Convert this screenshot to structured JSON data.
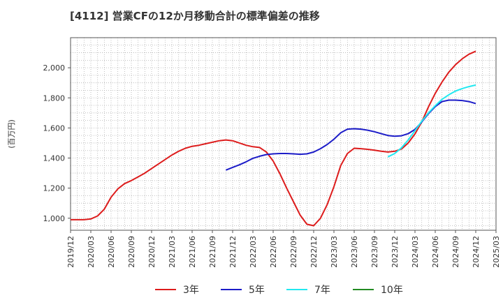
{
  "chart_data": {
    "type": "line",
    "title": "[4112]  営業CFの12か月移動合計の標準偏差の推移",
    "ylabel": "(百万円)",
    "xlabel": "",
    "ylim": [
      920,
      2200
    ],
    "yticks": [
      1000,
      1200,
      1400,
      1600,
      1800,
      2000
    ],
    "ytick_labels": [
      "1,000",
      "1,200",
      "1,400",
      "1,600",
      "1,800",
      "2,000"
    ],
    "xlim": [
      "2019-12",
      "2025-03"
    ],
    "xtick_labels": [
      "2019/12",
      "2020/03",
      "2020/06",
      "2020/09",
      "2020/12",
      "2021/03",
      "2021/06",
      "2021/09",
      "2021/12",
      "2022/03",
      "2022/06",
      "2022/09",
      "2022/12",
      "2023/03",
      "2023/06",
      "2023/09",
      "2023/12",
      "2024/03",
      "2024/06",
      "2024/09",
      "2024/12",
      "2025/03"
    ],
    "grid": true,
    "legend_position": "bottom",
    "series": [
      {
        "name": "3年",
        "color": "#dd1c1c",
        "x": [
          "2019-12",
          "2020-01",
          "2020-02",
          "2020-03",
          "2020-04",
          "2020-05",
          "2020-06",
          "2020-07",
          "2020-08",
          "2020-09",
          "2020-10",
          "2020-11",
          "2020-12",
          "2021-01",
          "2021-02",
          "2021-03",
          "2021-04",
          "2021-05",
          "2021-06",
          "2021-07",
          "2021-08",
          "2021-09",
          "2021-10",
          "2021-11",
          "2021-12",
          "2022-01",
          "2022-02",
          "2022-03",
          "2022-04",
          "2022-05",
          "2022-06",
          "2022-07",
          "2022-08",
          "2022-09",
          "2022-10",
          "2022-11",
          "2022-12",
          "2023-01",
          "2023-02",
          "2023-03",
          "2023-04",
          "2023-05",
          "2023-06",
          "2023-07",
          "2023-08",
          "2023-09",
          "2023-10",
          "2023-11",
          "2023-12",
          "2024-01",
          "2024-02",
          "2024-03",
          "2024-04",
          "2024-05",
          "2024-06",
          "2024-07",
          "2024-08",
          "2024-09",
          "2024-10",
          "2024-11",
          "2024-12"
        ],
        "values": [
          990,
          990,
          990,
          995,
          1015,
          1060,
          1140,
          1195,
          1230,
          1250,
          1275,
          1300,
          1330,
          1360,
          1390,
          1420,
          1445,
          1465,
          1478,
          1485,
          1495,
          1505,
          1515,
          1520,
          1515,
          1500,
          1485,
          1475,
          1470,
          1440,
          1380,
          1295,
          1200,
          1110,
          1020,
          960,
          950,
          1000,
          1090,
          1210,
          1350,
          1430,
          1465,
          1462,
          1458,
          1452,
          1445,
          1440,
          1445,
          1460,
          1500,
          1560,
          1640,
          1740,
          1830,
          1905,
          1970,
          2020,
          2060,
          2090,
          2110
        ]
      },
      {
        "name": "5年",
        "color": "#1c1cc8",
        "x": [
          "2021-11",
          "2021-12",
          "2022-01",
          "2022-02",
          "2022-03",
          "2022-04",
          "2022-05",
          "2022-06",
          "2022-07",
          "2022-08",
          "2022-09",
          "2022-10",
          "2022-11",
          "2022-12",
          "2023-01",
          "2023-02",
          "2023-03",
          "2023-04",
          "2023-05",
          "2023-06",
          "2023-07",
          "2023-08",
          "2023-09",
          "2023-10",
          "2023-11",
          "2023-12",
          "2024-01",
          "2024-02",
          "2024-03",
          "2024-04",
          "2024-05",
          "2024-06",
          "2024-07",
          "2024-08",
          "2024-09",
          "2024-10",
          "2024-11",
          "2024-12"
        ],
        "values": [
          1320,
          1338,
          1355,
          1375,
          1398,
          1412,
          1423,
          1428,
          1430,
          1430,
          1428,
          1425,
          1428,
          1440,
          1462,
          1490,
          1525,
          1568,
          1592,
          1595,
          1592,
          1585,
          1575,
          1562,
          1550,
          1545,
          1548,
          1562,
          1590,
          1640,
          1695,
          1742,
          1775,
          1785,
          1785,
          1782,
          1775,
          1762
        ]
      },
      {
        "name": "7年",
        "color": "#22e8f0",
        "x": [
          "2023-11",
          "2023-12",
          "2024-01",
          "2024-02",
          "2024-03",
          "2024-04",
          "2024-05",
          "2024-06",
          "2024-07",
          "2024-08",
          "2024-09",
          "2024-10",
          "2024-11",
          "2024-12"
        ],
        "values": [
          1408,
          1430,
          1468,
          1520,
          1582,
          1645,
          1700,
          1748,
          1790,
          1820,
          1845,
          1862,
          1875,
          1885
        ]
      },
      {
        "name": "10年",
        "color": "#228b22",
        "x": [],
        "values": []
      }
    ]
  }
}
